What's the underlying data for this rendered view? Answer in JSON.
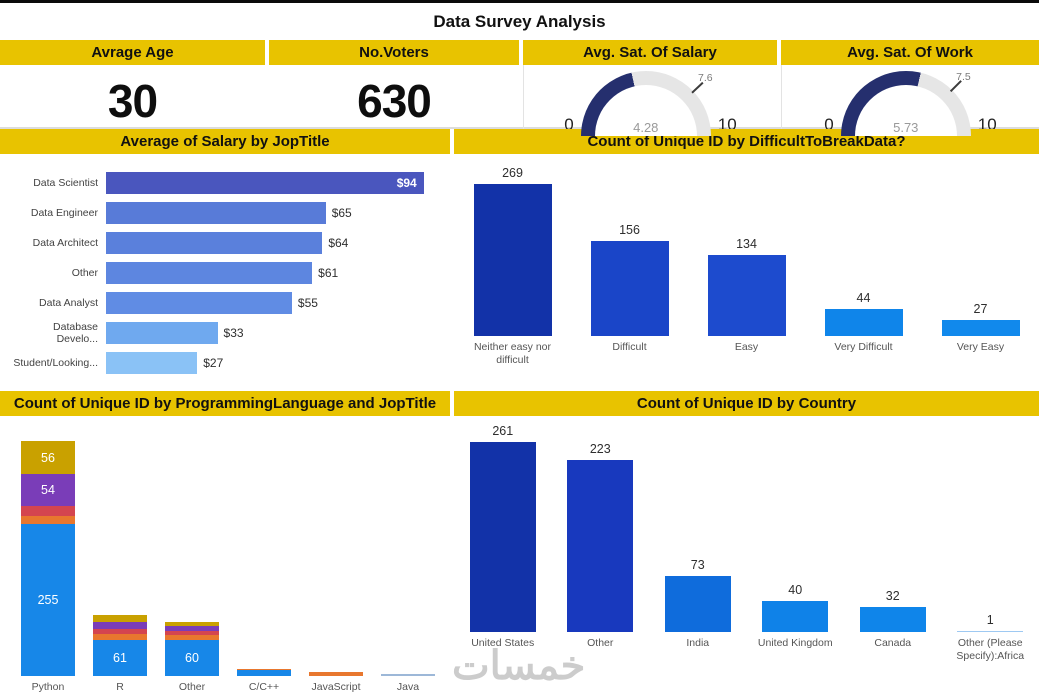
{
  "title": "Data Survey Analysis",
  "watermark": "خمسات",
  "colors": {
    "header_yellow": "#E8C300",
    "gauge_fill": "#252F6E",
    "gauge_rest": "#E6E6E6"
  },
  "kpis": [
    {
      "label": "Avrage Age",
      "value": "30"
    },
    {
      "label": "No.Voters",
      "value": "630"
    },
    {
      "label": "Avg. Sat. Of Salary",
      "gauge": {
        "min": 0,
        "max": 10,
        "min_label": "0",
        "max_label": "10",
        "value": 4.28,
        "display": "4.28",
        "target": 7.6,
        "target_display": "7.6"
      }
    },
    {
      "label": "Avg. Sat. Of Work",
      "gauge": {
        "min": 0,
        "max": 10,
        "min_label": "0",
        "max_label": "10",
        "value": 5.73,
        "display": "5.73",
        "target": 7.5,
        "target_display": "7.5"
      }
    }
  ],
  "chart_data": [
    {
      "type": "bar",
      "orientation": "horizontal",
      "title": "Average of Salary by JopTitle",
      "categories": [
        "Data Scientist",
        "Data Engineer",
        "Data Architect",
        "Other",
        "Data Analyst",
        "Database Develo...",
        "Student/Looking..."
      ],
      "values": [
        94,
        65,
        64,
        61,
        55,
        33,
        27
      ],
      "value_labels": [
        "$94",
        "$65",
        "$64",
        "$61",
        "$55",
        "$33",
        "$27"
      ],
      "bar_colors": [
        "#4A56BE",
        "#587BD8",
        "#5A80DC",
        "#5D86E0",
        "#608CE4",
        "#6FA9EF",
        "#8AC2F6"
      ],
      "xlim": [
        0,
        100
      ],
      "grid": false,
      "legend": "none"
    },
    {
      "type": "bar",
      "orientation": "vertical",
      "title": "Count of Unique ID by DifficultToBreakData?",
      "categories": [
        "Neither easy nor difficult",
        "Difficult",
        "Easy",
        "Very Difficult",
        "Very Easy"
      ],
      "values": [
        269,
        156,
        134,
        44,
        27
      ],
      "bar_colors": [
        "#1232A8",
        "#1A45C8",
        "#1D4BCE",
        "#0F85EA",
        "#1189EC"
      ],
      "ylim": [
        0,
        280
      ],
      "grid": false,
      "legend": "none"
    },
    {
      "type": "stacked-bar",
      "orientation": "vertical",
      "title": "Count of Unique ID by ProgrammingLanguage and JopTitle",
      "categories": [
        "Python",
        "R",
        "Other",
        "C/C++",
        "JavaScript",
        "Java"
      ],
      "series_colors": {
        "blue": "#1787E8",
        "orange": "#E8772E",
        "crimson": "#D4454F",
        "purple": "#7A3DB8",
        "gold": "#C9A100",
        "steel": "#9DB8D8"
      },
      "stacks": [
        [
          {
            "v": 255,
            "c": "blue",
            "label": "255"
          },
          {
            "v": 13,
            "c": "orange"
          },
          {
            "v": 17,
            "c": "crimson"
          },
          {
            "v": 54,
            "c": "purple",
            "label": "54"
          },
          {
            "v": 56,
            "c": "gold",
            "label": "56"
          }
        ],
        [
          {
            "v": 61,
            "c": "blue",
            "label": "61"
          },
          {
            "v": 10,
            "c": "orange"
          },
          {
            "v": 8,
            "c": "crimson"
          },
          {
            "v": 12,
            "c": "purple"
          },
          {
            "v": 12,
            "c": "gold"
          }
        ],
        [
          {
            "v": 60,
            "c": "blue",
            "label": "60"
          },
          {
            "v": 8,
            "c": "orange"
          },
          {
            "v": 6,
            "c": "crimson"
          },
          {
            "v": 9,
            "c": "purple"
          },
          {
            "v": 7,
            "c": "gold"
          }
        ],
        [
          {
            "v": 10,
            "c": "blue"
          },
          {
            "v": 2,
            "c": "orange"
          }
        ],
        [
          {
            "v": 6,
            "c": "orange"
          }
        ],
        [
          {
            "v": 3,
            "c": "steel"
          }
        ]
      ],
      "ylim": [
        0,
        400
      ],
      "grid": false,
      "legend": "none"
    },
    {
      "type": "bar",
      "orientation": "vertical",
      "title": "Count of Unique ID by Country",
      "categories": [
        "United States",
        "Other",
        "India",
        "United Kingdom",
        "Canada",
        "Other (Please Specify):Africa"
      ],
      "values": [
        261,
        223,
        73,
        40,
        32,
        1
      ],
      "bar_colors": [
        "#1232A8",
        "#1839BE",
        "#0F6CDC",
        "#0F82E8",
        "#0F85EA",
        "#9EC9F2"
      ],
      "ylim": [
        0,
        270
      ],
      "grid": false,
      "legend": "none"
    }
  ]
}
